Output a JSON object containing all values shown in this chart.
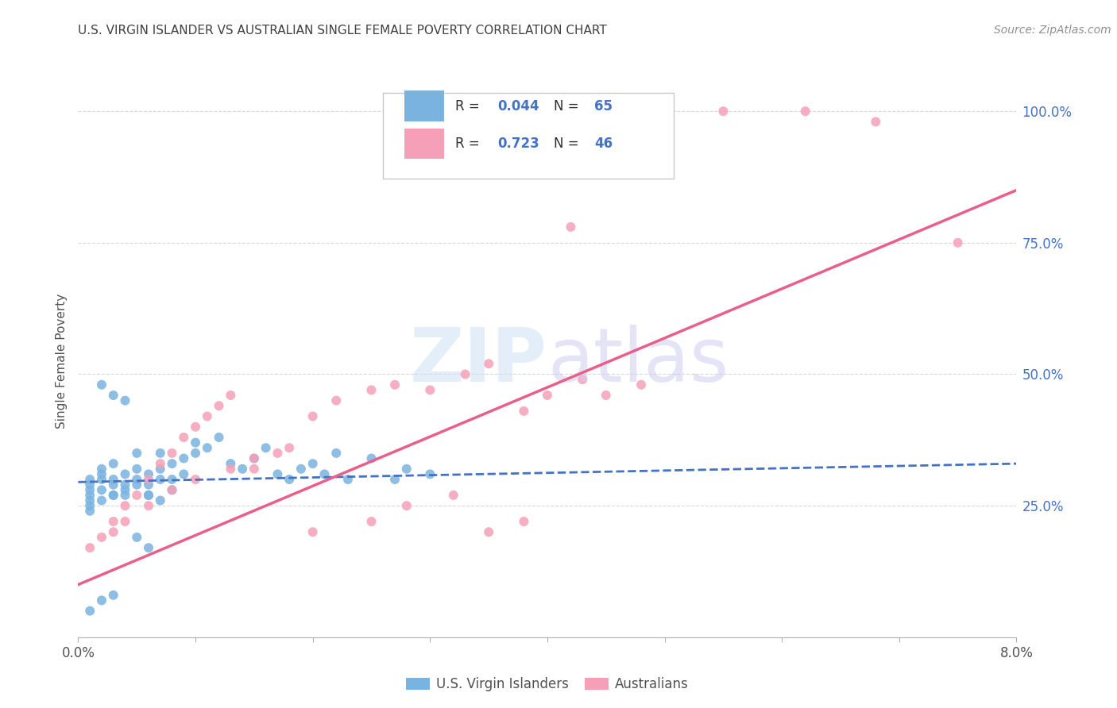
{
  "title": "U.S. VIRGIN ISLANDER VS AUSTRALIAN SINGLE FEMALE POVERTY CORRELATION CHART",
  "source": "Source: ZipAtlas.com",
  "ylabel": "Single Female Poverty",
  "yticks": [
    "25.0%",
    "50.0%",
    "75.0%",
    "100.0%"
  ],
  "ytick_vals": [
    0.25,
    0.5,
    0.75,
    1.0
  ],
  "legend_entries": [
    {
      "label": "U.S. Virgin Islanders",
      "R": "0.044",
      "N": "65",
      "color": "#a8c8f0"
    },
    {
      "label": "Australians",
      "R": "0.723",
      "N": "46",
      "color": "#f5b0c5"
    }
  ],
  "background_color": "#ffffff",
  "blue_scatter_x": [
    0.001,
    0.001,
    0.001,
    0.001,
    0.001,
    0.002,
    0.002,
    0.002,
    0.002,
    0.003,
    0.003,
    0.003,
    0.003,
    0.004,
    0.004,
    0.004,
    0.005,
    0.005,
    0.005,
    0.006,
    0.006,
    0.006,
    0.007,
    0.007,
    0.007,
    0.008,
    0.008,
    0.009,
    0.009,
    0.01,
    0.01,
    0.011,
    0.012,
    0.013,
    0.014,
    0.015,
    0.016,
    0.017,
    0.018,
    0.019,
    0.02,
    0.021,
    0.022,
    0.023,
    0.025,
    0.027,
    0.028,
    0.03,
    0.001,
    0.001,
    0.002,
    0.003,
    0.004,
    0.005,
    0.006,
    0.007,
    0.008,
    0.002,
    0.003,
    0.004,
    0.005,
    0.006,
    0.003,
    0.002,
    0.001
  ],
  "blue_scatter_y": [
    0.3,
    0.29,
    0.28,
    0.27,
    0.26,
    0.32,
    0.31,
    0.3,
    0.28,
    0.33,
    0.3,
    0.29,
    0.27,
    0.31,
    0.29,
    0.27,
    0.35,
    0.32,
    0.3,
    0.31,
    0.29,
    0.27,
    0.35,
    0.32,
    0.3,
    0.33,
    0.3,
    0.34,
    0.31,
    0.37,
    0.35,
    0.36,
    0.38,
    0.33,
    0.32,
    0.34,
    0.36,
    0.31,
    0.3,
    0.32,
    0.33,
    0.31,
    0.35,
    0.3,
    0.34,
    0.3,
    0.32,
    0.31,
    0.25,
    0.24,
    0.26,
    0.27,
    0.28,
    0.29,
    0.27,
    0.26,
    0.28,
    0.48,
    0.46,
    0.45,
    0.19,
    0.17,
    0.08,
    0.07,
    0.05
  ],
  "pink_scatter_x": [
    0.001,
    0.002,
    0.003,
    0.004,
    0.005,
    0.006,
    0.007,
    0.008,
    0.009,
    0.01,
    0.011,
    0.012,
    0.013,
    0.015,
    0.017,
    0.02,
    0.022,
    0.025,
    0.027,
    0.03,
    0.033,
    0.035,
    0.038,
    0.04,
    0.043,
    0.045,
    0.003,
    0.004,
    0.006,
    0.008,
    0.01,
    0.013,
    0.015,
    0.018,
    0.02,
    0.025,
    0.028,
    0.032,
    0.035,
    0.038,
    0.042,
    0.048,
    0.055,
    0.062,
    0.068,
    0.075
  ],
  "pink_scatter_y": [
    0.17,
    0.19,
    0.22,
    0.25,
    0.27,
    0.3,
    0.33,
    0.35,
    0.38,
    0.4,
    0.42,
    0.44,
    0.46,
    0.32,
    0.35,
    0.42,
    0.45,
    0.47,
    0.48,
    0.47,
    0.5,
    0.52,
    0.43,
    0.46,
    0.49,
    0.46,
    0.2,
    0.22,
    0.25,
    0.28,
    0.3,
    0.32,
    0.34,
    0.36,
    0.2,
    0.22,
    0.25,
    0.27,
    0.2,
    0.22,
    0.78,
    0.48,
    1.0,
    1.0,
    0.98,
    0.75
  ],
  "blue_line_x": [
    0.0,
    0.08
  ],
  "blue_line_y": [
    0.295,
    0.33
  ],
  "pink_line_x": [
    0.0,
    0.08
  ],
  "pink_line_y": [
    0.1,
    0.85
  ],
  "xlim": [
    0.0,
    0.08
  ],
  "ylim": [
    0.0,
    1.05
  ],
  "blue_color": "#7ab3e0",
  "pink_color": "#f5a0b8",
  "blue_line_color": "#4472c4",
  "pink_line_color": "#e8608a",
  "grid_color": "#d8d8d8",
  "title_color": "#404040",
  "source_color": "#909090",
  "r_n_color": "#4472c4"
}
